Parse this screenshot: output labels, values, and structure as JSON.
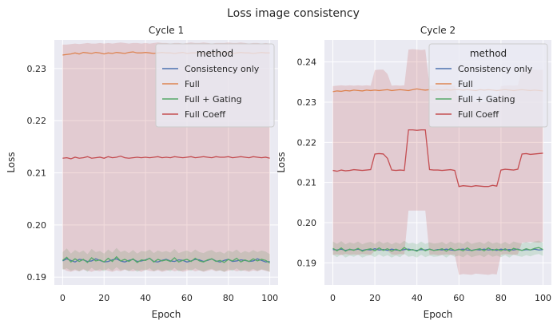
{
  "figure": {
    "title": "Loss image consistency"
  },
  "colors": {
    "bg": "#eaeaf2",
    "grid": "#ffffff",
    "text": "#262626",
    "legend_bg": "#eaeaf2",
    "legend_edge": "#cccccc"
  },
  "chart_data": [
    {
      "type": "line",
      "title": "Cycle 1",
      "xlabel": "Epoch",
      "ylabel": "Loss",
      "xlim": [
        -4,
        104
      ],
      "ylim": [
        0.1885,
        0.2355
      ],
      "xticks": [
        0,
        20,
        40,
        60,
        80,
        100
      ],
      "xtick_labels": [
        "0",
        "20",
        "40",
        "60",
        "80",
        "100"
      ],
      "yticks": [
        0.19,
        0.2,
        0.21,
        0.22,
        0.23
      ],
      "ytick_labels": [
        "0.19",
        "0.20",
        "0.21",
        "0.22",
        "0.23"
      ],
      "grid": true,
      "legend": {
        "title": "method",
        "placement": "top-right",
        "entries": [
          "Consistency only",
          "Full",
          "Full + Gating",
          "Full Coeff"
        ]
      },
      "series": [
        {
          "name": "Consistency only",
          "color": "#4c72b0",
          "mean": [
            0.1931,
            0.1935,
            0.1932,
            0.1929,
            0.1934,
            0.1933,
            0.193,
            0.1931,
            0.1935,
            0.1932,
            0.1929,
            0.193,
            0.1933,
            0.1935,
            0.1931,
            0.1929,
            0.1932,
            0.1934,
            0.193,
            0.1931,
            0.1933,
            0.1936,
            0.193,
            0.1929,
            0.1932,
            0.1934,
            0.1931,
            0.193,
            0.1933,
            0.1932,
            0.1929,
            0.1931,
            0.1934,
            0.1933,
            0.193,
            0.1932,
            0.1935,
            0.1931,
            0.1929,
            0.1932,
            0.1934,
            0.193,
            0.1931,
            0.1933,
            0.1932,
            0.193,
            0.1931,
            0.1935,
            0.1932,
            0.1929,
            0.193
          ]
        },
        {
          "name": "Full",
          "color": "#dd8452",
          "mean": [
            0.2326,
            0.2327,
            0.2328,
            0.233,
            0.2328,
            0.2331,
            0.233,
            0.2329,
            0.2331,
            0.233,
            0.2328,
            0.233,
            0.2329,
            0.2331,
            0.233,
            0.2329,
            0.2331,
            0.2332,
            0.233,
            0.233,
            0.2331,
            0.233,
            0.2329,
            0.233,
            0.2331,
            0.233,
            0.233,
            0.2329,
            0.233,
            0.2331,
            0.2329,
            0.233,
            0.233,
            0.2331,
            0.2329,
            0.233,
            0.2331,
            0.233,
            0.233,
            0.2331,
            0.233,
            0.2329,
            0.233,
            0.2331,
            0.233,
            0.233,
            0.2329,
            0.233,
            0.2331,
            0.233,
            0.233
          ]
        },
        {
          "name": "Full + Gating",
          "color": "#55a868",
          "mean": [
            0.1932,
            0.1938,
            0.1929,
            0.1935,
            0.193,
            0.1934,
            0.1928,
            0.1937,
            0.1931,
            0.1933,
            0.1929,
            0.1936,
            0.193,
            0.1939,
            0.1931,
            0.1934,
            0.193,
            0.1935,
            0.1928,
            0.1933,
            0.1932,
            0.1936,
            0.1929,
            0.1934,
            0.1931,
            0.1933,
            0.193,
            0.1937,
            0.1929,
            0.1932,
            0.1934,
            0.193,
            0.1936,
            0.1931,
            0.1929,
            0.1933,
            0.1935,
            0.193,
            0.1932,
            0.1928,
            0.1934,
            0.1931,
            0.1936,
            0.1929,
            0.1933,
            0.193,
            0.1935,
            0.1931,
            0.1934,
            0.1932,
            0.1927
          ],
          "ci_low": [
            0.1914,
            0.1917,
            0.1912,
            0.1915,
            0.1911,
            0.1916,
            0.191,
            0.1918,
            0.1912,
            0.1915,
            0.1911,
            0.1917,
            0.1912,
            0.1919,
            0.1913,
            0.1915,
            0.1911,
            0.1916,
            0.191,
            0.1914,
            0.1913,
            0.1917,
            0.1911,
            0.1915,
            0.1912,
            0.1914,
            0.1911,
            0.1918,
            0.1911,
            0.1913,
            0.1915,
            0.1912,
            0.1917,
            0.1913,
            0.1911,
            0.1914,
            0.1916,
            0.1912,
            0.1913,
            0.191,
            0.1915,
            0.1912,
            0.1917,
            0.1911,
            0.1914,
            0.1912,
            0.1916,
            0.1912,
            0.1915,
            0.1913,
            0.191
          ],
          "ci_high": [
            0.1948,
            0.1955,
            0.1945,
            0.1952,
            0.1947,
            0.1951,
            0.1944,
            0.1954,
            0.1948,
            0.195,
            0.1945,
            0.1953,
            0.1947,
            0.1956,
            0.1948,
            0.1951,
            0.1946,
            0.1952,
            0.1945,
            0.195,
            0.1949,
            0.1953,
            0.1946,
            0.1951,
            0.1948,
            0.195,
            0.1947,
            0.1954,
            0.1946,
            0.1949,
            0.1951,
            0.1947,
            0.1953,
            0.1948,
            0.1946,
            0.195,
            0.1952,
            0.1947,
            0.1949,
            0.1945,
            0.1951,
            0.1948,
            0.1953,
            0.1946,
            0.195,
            0.1947,
            0.1952,
            0.1948,
            0.1951,
            0.1949,
            0.1944
          ]
        },
        {
          "name": "Full Coeff",
          "color": "#c44e52",
          "mean": [
            0.2128,
            0.2129,
            0.2127,
            0.213,
            0.2128,
            0.2129,
            0.2131,
            0.2128,
            0.2129,
            0.213,
            0.2128,
            0.2131,
            0.2129,
            0.213,
            0.2132,
            0.2129,
            0.2128,
            0.2129,
            0.213,
            0.2129,
            0.213,
            0.2129,
            0.213,
            0.2131,
            0.2129,
            0.213,
            0.2129,
            0.2131,
            0.213,
            0.2129,
            0.213,
            0.2131,
            0.2129,
            0.213,
            0.2131,
            0.213,
            0.2129,
            0.2131,
            0.213,
            0.213,
            0.2131,
            0.2129,
            0.213,
            0.2131,
            0.213,
            0.2129,
            0.2131,
            0.213,
            0.2129,
            0.213,
            0.2128
          ],
          "ci_low": [
            0.1916,
            0.1912,
            0.191,
            0.1913,
            0.1911,
            0.1914,
            0.1912,
            0.191,
            0.1913,
            0.1911,
            0.1914,
            0.1912,
            0.191,
            0.1913,
            0.1911,
            0.1914,
            0.1912,
            0.1911,
            0.1913,
            0.191,
            0.1914,
            0.1912,
            0.1911,
            0.1913,
            0.191,
            0.1912,
            0.1914,
            0.1911,
            0.1913,
            0.191,
            0.1912,
            0.1914,
            0.1911,
            0.1913,
            0.191,
            0.1912,
            0.1914,
            0.1911,
            0.1913,
            0.191,
            0.1912,
            0.1914,
            0.1911,
            0.1913,
            0.1912,
            0.191,
            0.1913,
            0.1911,
            0.1914,
            0.1912,
            0.191
          ],
          "ci_high": [
            0.2346,
            0.2346,
            0.2347,
            0.2348,
            0.2347,
            0.2348,
            0.2349,
            0.2348,
            0.2348,
            0.2349,
            0.2348,
            0.2349,
            0.2348,
            0.2349,
            0.235,
            0.2349,
            0.2348,
            0.2349,
            0.2349,
            0.2348,
            0.2349,
            0.2348,
            0.2349,
            0.235,
            0.2349,
            0.2349,
            0.2348,
            0.2349,
            0.2349,
            0.2348,
            0.2349,
            0.235,
            0.2349,
            0.2349,
            0.235,
            0.2349,
            0.2348,
            0.2349,
            0.2349,
            0.2349,
            0.235,
            0.2349,
            0.2349,
            0.235,
            0.2349,
            0.2348,
            0.2349,
            0.2349,
            0.2348,
            0.2349,
            0.2348
          ]
        }
      ]
    },
    {
      "type": "line",
      "title": "Cycle 2",
      "xlabel": "Epoch",
      "ylabel": "Loss",
      "xlim": [
        -4,
        104
      ],
      "ylim": [
        0.1845,
        0.2455
      ],
      "xticks": [
        0,
        20,
        40,
        60,
        80,
        100
      ],
      "xtick_labels": [
        "0",
        "20",
        "40",
        "60",
        "80",
        "100"
      ],
      "yticks": [
        0.19,
        0.2,
        0.21,
        0.22,
        0.23,
        0.24
      ],
      "ytick_labels": [
        "0.19",
        "0.20",
        "0.21",
        "0.22",
        "0.23",
        "0.24"
      ],
      "grid": true,
      "legend": {
        "title": "method",
        "placement": "top-right",
        "entries": [
          "Consistency only",
          "Full",
          "Full + Gating",
          "Full Coeff"
        ]
      },
      "series": [
        {
          "name": "Consistency only",
          "color": "#4c72b0",
          "mean": [
            0.1933,
            0.1932,
            0.1934,
            0.1931,
            0.1933,
            0.1932,
            0.1934,
            0.1931,
            0.1933,
            0.1932,
            0.1935,
            0.1932,
            0.1933,
            0.1931,
            0.1934,
            0.1932,
            0.1931,
            0.1933,
            0.1934,
            0.1932,
            0.1931,
            0.1933,
            0.1932,
            0.1934,
            0.1931,
            0.1933,
            0.1932,
            0.1934,
            0.1932,
            0.1931,
            0.1933,
            0.1934,
            0.1932,
            0.1931,
            0.1933,
            0.1932,
            0.1934,
            0.1932,
            0.1933,
            0.1931,
            0.1934,
            0.1932,
            0.1933,
            0.1932,
            0.1934,
            0.1931,
            0.1933,
            0.1932,
            0.1934,
            0.1932,
            0.1933
          ]
        },
        {
          "name": "Full",
          "color": "#dd8452",
          "mean": [
            0.2326,
            0.2328,
            0.2327,
            0.2329,
            0.2328,
            0.233,
            0.2329,
            0.2328,
            0.233,
            0.2329,
            0.233,
            0.2329,
            0.233,
            0.2331,
            0.2329,
            0.233,
            0.2331,
            0.233,
            0.2329,
            0.2331,
            0.2333,
            0.2331,
            0.233,
            0.2331,
            0.233,
            0.2331,
            0.233,
            0.2331,
            0.233,
            0.2331,
            0.2331,
            0.233,
            0.2331,
            0.233,
            0.2329,
            0.2331,
            0.233,
            0.2331,
            0.233,
            0.2329,
            0.233,
            0.2331,
            0.233,
            0.2329,
            0.233,
            0.2331,
            0.233,
            0.2329,
            0.233,
            0.2329,
            0.2328
          ]
        },
        {
          "name": "Full + Gating",
          "color": "#55a868",
          "mean": [
            0.1936,
            0.193,
            0.1937,
            0.1929,
            0.1934,
            0.1931,
            0.1936,
            0.1929,
            0.1933,
            0.1935,
            0.193,
            0.1937,
            0.1931,
            0.1935,
            0.1929,
            0.1934,
            0.193,
            0.1938,
            0.1931,
            0.1933,
            0.1929,
            0.1936,
            0.193,
            0.1934,
            0.1931,
            0.1932,
            0.1935,
            0.1929,
            0.1936,
            0.1931,
            0.1934,
            0.193,
            0.1937,
            0.193,
            0.1933,
            0.1935,
            0.193,
            0.1937,
            0.1931,
            0.1934,
            0.193,
            0.1935,
            0.1929,
            0.1936,
            0.1933,
            0.1931,
            0.1935,
            0.1932,
            0.1936,
            0.1938,
            0.1933
          ],
          "ci_low": [
            0.192,
            0.1914,
            0.1921,
            0.1913,
            0.1918,
            0.1915,
            0.192,
            0.1913,
            0.1917,
            0.1919,
            0.1914,
            0.1921,
            0.1915,
            0.1919,
            0.1913,
            0.1918,
            0.1914,
            0.1922,
            0.1915,
            0.1917,
            0.1913,
            0.192,
            0.1914,
            0.1918,
            0.1915,
            0.1916,
            0.1919,
            0.1913,
            0.192,
            0.1915,
            0.1918,
            0.1914,
            0.1921,
            0.1914,
            0.1917,
            0.1919,
            0.1914,
            0.1921,
            0.1915,
            0.1918,
            0.1914,
            0.1919,
            0.1913,
            0.192,
            0.1917,
            0.1915,
            0.1919,
            0.1916,
            0.192,
            0.1922,
            0.1917
          ],
          "ci_high": [
            0.1953,
            0.1947,
            0.1954,
            0.1946,
            0.1951,
            0.1948,
            0.1953,
            0.1946,
            0.195,
            0.1952,
            0.1947,
            0.1954,
            0.1948,
            0.1952,
            0.1946,
            0.1951,
            0.1947,
            0.1955,
            0.1948,
            0.195,
            0.1946,
            0.1953,
            0.1947,
            0.1951,
            0.1948,
            0.1949,
            0.1952,
            0.1946,
            0.1953,
            0.1948,
            0.1951,
            0.1947,
            0.1954,
            0.1947,
            0.195,
            0.1952,
            0.1947,
            0.1954,
            0.1948,
            0.1951,
            0.1947,
            0.1952,
            0.1946,
            0.1953,
            0.195,
            0.1948,
            0.1952,
            0.1949,
            0.1953,
            0.1955,
            0.195
          ]
        },
        {
          "name": "Full Coeff",
          "color": "#c44e52",
          "mean": [
            0.213,
            0.2128,
            0.2131,
            0.2129,
            0.213,
            0.2132,
            0.2131,
            0.213,
            0.2131,
            0.2132,
            0.2171,
            0.2172,
            0.2171,
            0.216,
            0.2131,
            0.213,
            0.2131,
            0.213,
            0.2231,
            0.2231,
            0.223,
            0.2231,
            0.2231,
            0.2132,
            0.2131,
            0.2131,
            0.213,
            0.2131,
            0.2132,
            0.213,
            0.209,
            0.2092,
            0.2091,
            0.209,
            0.2092,
            0.2091,
            0.209,
            0.209,
            0.2093,
            0.2091,
            0.2131,
            0.2133,
            0.2132,
            0.2131,
            0.2133,
            0.2171,
            0.2172,
            0.217,
            0.2171,
            0.2172,
            0.2173
          ],
          "ci_low": [
            0.192,
            0.1921,
            0.1919,
            0.1922,
            0.192,
            0.1921,
            0.192,
            0.1922,
            0.1921,
            0.192,
            0.193,
            0.193,
            0.193,
            0.193,
            0.1921,
            0.192,
            0.1922,
            0.1921,
            0.203,
            0.203,
            0.203,
            0.203,
            0.203,
            0.192,
            0.1921,
            0.1919,
            0.192,
            0.1921,
            0.192,
            0.192,
            0.187,
            0.1872,
            0.1871,
            0.187,
            0.1873,
            0.1872,
            0.1871,
            0.187,
            0.1872,
            0.1871,
            0.192,
            0.1922,
            0.1921,
            0.192,
            0.1921,
            0.195,
            0.1951,
            0.1952,
            0.1951,
            0.195,
            0.1952
          ],
          "ci_high": [
            0.234,
            0.2341,
            0.2342,
            0.2341,
            0.2342,
            0.2341,
            0.2342,
            0.2341,
            0.2342,
            0.2341,
            0.238,
            0.2381,
            0.2381,
            0.237,
            0.2341,
            0.2342,
            0.2341,
            0.2342,
            0.2431,
            0.2432,
            0.2431,
            0.243,
            0.2431,
            0.2341,
            0.2342,
            0.2341,
            0.234,
            0.2342,
            0.2341,
            0.2341,
            0.23,
            0.2301,
            0.23,
            0.2302,
            0.2301,
            0.23,
            0.2301,
            0.23,
            0.2301,
            0.23,
            0.234,
            0.2341,
            0.2342,
            0.2341,
            0.2342,
            0.238,
            0.2381,
            0.238,
            0.2381,
            0.238,
            0.2381
          ]
        }
      ]
    }
  ]
}
